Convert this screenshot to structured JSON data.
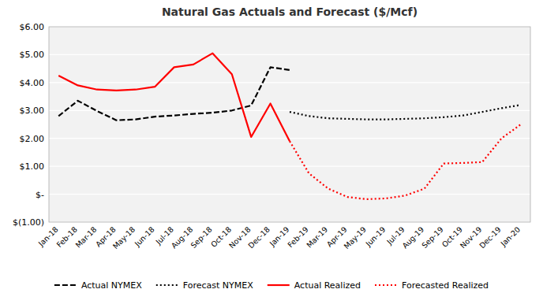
{
  "chart_data": {
    "type": "line",
    "title": "Natural Gas Actuals and Forecast ($/Mcf)",
    "categories": [
      "Jan-18",
      "Feb-18",
      "Mar-18",
      "Apr-18",
      "May-18",
      "Jun-18",
      "Jul-18",
      "Aug-18",
      "Sep-18",
      "Oct-18",
      "Nov-18",
      "Dec-18",
      "Jan-19",
      "Feb-19",
      "Mar-19",
      "Apr-19",
      "May-19",
      "Jun-19",
      "Jul-19",
      "Aug-19",
      "Sep-19",
      "Oct-19",
      "Nov-19",
      "Dec-19",
      "Jan-20"
    ],
    "series": [
      {
        "name": "Actual NYMEX",
        "color": "#000000",
        "line_style": "dashed",
        "values": [
          2.8,
          3.35,
          2.98,
          2.65,
          2.68,
          2.78,
          2.82,
          2.88,
          2.92,
          3.0,
          3.18,
          4.55,
          4.45,
          null,
          null,
          null,
          null,
          null,
          null,
          null,
          null,
          null,
          null,
          null,
          null
        ]
      },
      {
        "name": "Forecast NYMEX",
        "color": "#000000",
        "line_style": "dotted",
        "values": [
          null,
          null,
          null,
          null,
          null,
          null,
          null,
          null,
          null,
          null,
          null,
          null,
          2.95,
          2.8,
          2.72,
          2.7,
          2.68,
          2.68,
          2.7,
          2.72,
          2.76,
          2.82,
          2.95,
          3.08,
          3.2
        ]
      },
      {
        "name": "Actual Realized",
        "color": "#FF0000",
        "line_style": "solid",
        "values": [
          4.25,
          3.9,
          3.75,
          3.72,
          3.75,
          3.85,
          4.55,
          4.65,
          5.05,
          4.3,
          2.05,
          3.25,
          1.9,
          null,
          null,
          null,
          null,
          null,
          null,
          null,
          null,
          null,
          null,
          null,
          null
        ]
      },
      {
        "name": "Forecasted Realized",
        "color": "#FF0000",
        "line_style": "dotted",
        "values": [
          null,
          null,
          null,
          null,
          null,
          null,
          null,
          null,
          null,
          null,
          null,
          null,
          1.9,
          0.75,
          0.2,
          -0.1,
          -0.18,
          -0.15,
          -0.05,
          0.2,
          1.1,
          1.12,
          1.15,
          2.0,
          2.5
        ]
      }
    ],
    "ylim": [
      -1.0,
      6.0
    ],
    "yticks": [
      {
        "value": -1.0,
        "label": "$(1.00)"
      },
      {
        "value": 0.0,
        "label": "$-"
      },
      {
        "value": 1.0,
        "label": "$1.00"
      },
      {
        "value": 2.0,
        "label": "$2.00"
      },
      {
        "value": 3.0,
        "label": "$3.00"
      },
      {
        "value": 4.0,
        "label": "$4.00"
      },
      {
        "value": 5.0,
        "label": "$5.00"
      },
      {
        "value": 6.0,
        "label": "$6.00"
      }
    ],
    "grid": true,
    "legend": "bottom"
  }
}
